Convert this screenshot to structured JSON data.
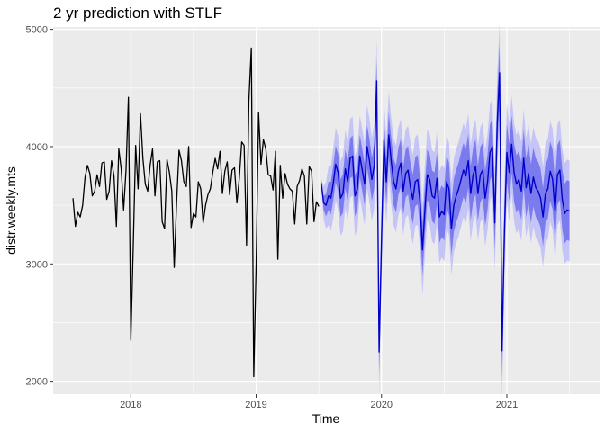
{
  "chart_data": {
    "type": "line",
    "title": "2 yr prediction with STLF",
    "xlabel": "Time",
    "ylabel": "distr.weekly.mts",
    "xlim": [
      2017.38,
      2021.74
    ],
    "ylim": [
      1890,
      5020
    ],
    "x_ticks": [
      2018,
      2019,
      2020,
      2021
    ],
    "x_tick_labels": [
      "2018",
      "2019",
      "2020",
      "2021"
    ],
    "y_ticks": [
      2000,
      3000,
      4000,
      5000
    ],
    "y_tick_labels": [
      "2000",
      "3000",
      "4000",
      "5000"
    ],
    "grid": true,
    "legend": "none",
    "colors": {
      "panel": "#ebebeb",
      "grid": "#ffffff",
      "observed": "#000000",
      "forecast": "#0000cc",
      "band80": "#7b7bee",
      "band95": "#c4c4f7"
    },
    "observed": {
      "start": 2017.5385,
      "step": 0.019231,
      "values": [
        3560,
        3320,
        3440,
        3400,
        3500,
        3740,
        3840,
        3770,
        3580,
        3620,
        3760,
        3660,
        3860,
        3870,
        3550,
        3620,
        3880,
        3750,
        3320,
        3980,
        3810,
        3460,
        3800,
        4420,
        2350,
        3150,
        4010,
        3640,
        4280,
        3900,
        3680,
        3620,
        3840,
        3980,
        3580,
        3870,
        3880,
        3360,
        3300,
        3890,
        3780,
        3620,
        2970,
        3530,
        3970,
        3880,
        3700,
        3660,
        4000,
        3310,
        3430,
        3400,
        3700,
        3640,
        3350,
        3500,
        3590,
        3640,
        3780,
        3900,
        3810,
        3960,
        3600,
        3790,
        3870,
        3590,
        3800,
        3820,
        3520,
        3730,
        4040,
        4010,
        3160,
        4400,
        4840,
        2040,
        3000,
        4290,
        3850,
        4060,
        3980,
        3760,
        3750,
        3630,
        3960,
        3040,
        3840,
        3560,
        3770,
        3680,
        3640,
        3620,
        3340,
        3660,
        3710,
        3810,
        3750,
        3340,
        3830,
        3790,
        3360,
        3530,
        3490
      ]
    },
    "forecast": {
      "start": 2019.5192,
      "step": 0.019231,
      "values": [
        3690,
        3520,
        3500,
        3580,
        3560,
        3690,
        3850,
        3780,
        3560,
        3600,
        3810,
        3700,
        3900,
        3920,
        3580,
        3640,
        3920,
        3800,
        3680,
        4000,
        3880,
        3720,
        3840,
        4560,
        2250,
        3200,
        4050,
        3700,
        4100,
        3880,
        3700,
        3640,
        3790,
        3860,
        3620,
        3770,
        3800,
        3650,
        3550,
        3700,
        3720,
        3520,
        3120,
        3460,
        3760,
        3720,
        3580,
        3560,
        3730,
        3400,
        3450,
        3420,
        3700,
        3640,
        3300,
        3500,
        3580,
        3640,
        3720,
        3800,
        3750,
        3880,
        3600,
        3760,
        3830,
        3600,
        3760,
        3800,
        3560,
        3700,
        3950,
        4000,
        3350,
        4200,
        4630,
        2260,
        3280,
        3950,
        3780,
        4020,
        3780,
        3680,
        3720,
        3620,
        3900,
        3650,
        3770,
        3600,
        3740,
        3650,
        3620,
        3560,
        3400,
        3600,
        3640,
        3790,
        3720,
        3450,
        3760,
        3800,
        3550,
        3430,
        3460,
        3450
      ]
    },
    "band80_halfwidth": [
      20,
      60,
      95,
      120,
      140,
      150,
      155,
      160,
      160,
      165,
      165,
      170,
      170,
      175,
      175,
      175,
      180,
      180,
      180,
      185,
      185,
      185,
      190,
      190,
      190,
      195,
      195,
      195,
      195,
      200,
      200,
      200,
      200,
      205,
      205,
      205,
      205,
      210,
      210,
      210,
      210,
      210,
      215,
      215,
      215,
      215,
      215,
      220,
      220,
      220,
      220,
      220,
      225,
      225,
      225,
      225,
      225,
      225,
      230,
      230,
      230,
      230,
      230,
      230,
      235,
      235,
      235,
      235,
      235,
      235,
      240,
      240,
      240,
      240,
      240,
      240,
      240,
      245,
      245,
      245,
      245,
      245,
      245,
      245,
      245,
      250,
      250,
      250,
      250,
      250,
      250,
      250,
      250,
      250,
      255,
      255,
      255,
      255,
      255,
      255,
      255,
      255,
      255,
      255
    ],
    "band95_halfwidth": [
      40,
      140,
      200,
      250,
      280,
      300,
      310,
      315,
      320,
      325,
      330,
      335,
      335,
      340,
      340,
      345,
      345,
      350,
      350,
      355,
      355,
      355,
      360,
      360,
      360,
      365,
      365,
      365,
      370,
      370,
      370,
      370,
      375,
      375,
      375,
      375,
      380,
      380,
      380,
      380,
      385,
      385,
      385,
      385,
      385,
      390,
      390,
      390,
      390,
      390,
      395,
      395,
      395,
      395,
      395,
      400,
      400,
      400,
      400,
      400,
      400,
      405,
      405,
      405,
      405,
      405,
      405,
      410,
      410,
      410,
      410,
      410,
      410,
      415,
      415,
      415,
      415,
      415,
      415,
      415,
      420,
      420,
      420,
      420,
      420,
      420,
      420,
      425,
      425,
      425,
      425,
      425,
      425,
      425,
      425,
      430,
      430,
      430,
      430,
      430,
      430,
      430,
      430,
      430
    ]
  }
}
